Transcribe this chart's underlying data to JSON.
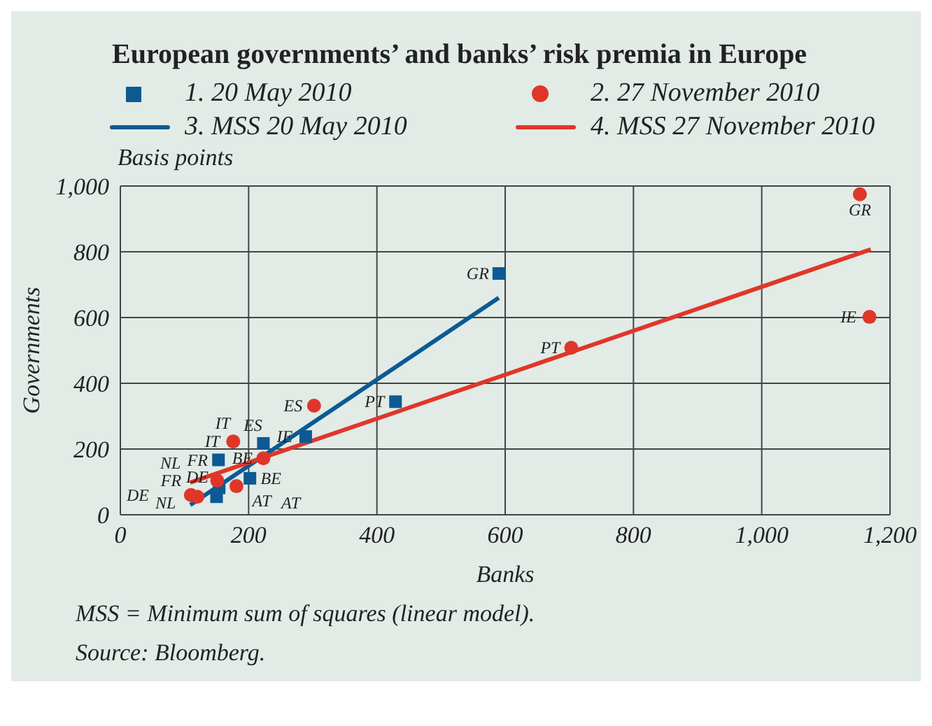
{
  "chart_data": {
    "type": "scatter",
    "title": "European governments’ and banks’ risk premia in Europe",
    "subtitle": "Basis points",
    "xlabel": "Banks",
    "ylabel": "Governments",
    "series": [
      {
        "name": "1. 20 May 2010",
        "marker": "square",
        "color": "#0b5a94",
        "x": [
          590,
          429,
          289,
          223,
          153,
          202,
          150,
          154,
          null
        ],
        "values": [
          734,
          344,
          238,
          217,
          167,
          111,
          55,
          82,
          null
        ]
      },
      {
        "name": "2. 27 November 2010",
        "marker": "circle",
        "color": "#e0362a",
        "x": [
          1153,
          1168,
          703,
          302,
          176,
          223,
          151,
          181,
          110,
          120
        ],
        "values": [
          975,
          602,
          508,
          332,
          223,
          172,
          104,
          87,
          60,
          55
        ]
      },
      {
        "name": "3. MSS 20 May 2010",
        "type": "line",
        "marker": "none",
        "color": "#0b5a94",
        "x": [
          109,
          590
        ],
        "values": [
          30,
          660
        ]
      },
      {
        "name": "4. MSS 27 November 2010",
        "type": "line",
        "marker": "none",
        "color": "#e0362a",
        "x": [
          109,
          1170
        ],
        "values": [
          98,
          807
        ]
      }
    ],
    "xlim": [
      0,
      1200
    ],
    "xticks": [
      0,
      200,
      400,
      600,
      800,
      {
        "value": 1000,
        "label": "1,000"
      },
      {
        "value": 1200,
        "label": "1,200"
      }
    ],
    "ylim": [
      0,
      1000
    ],
    "yticks": [
      0,
      200,
      400,
      600,
      800,
      {
        "value": 1000,
        "label": "1,000"
      }
    ],
    "grid": true,
    "legend": "top",
    "annotations": [
      {
        "text": "GR",
        "x": 590,
        "y": 734
      },
      {
        "text": "PT",
        "x": 429,
        "y": 344
      },
      {
        "text": "GR",
        "x": 1153,
        "y": 975
      },
      {
        "text": "IE",
        "x": 1168,
        "y": 602
      },
      {
        "text": "PT",
        "x": 703,
        "y": 508
      },
      {
        "text": "IE",
        "x": 289,
        "y": 238
      },
      {
        "text": "ES",
        "x": 302,
        "y": 332
      },
      {
        "text": "ES",
        "x": 223,
        "y": 217
      },
      {
        "text": "IT",
        "x": 176,
        "y": 223
      },
      {
        "text": "IT",
        "x": 176,
        "y": 223
      },
      {
        "text": "FR",
        "x": 153,
        "y": 167
      },
      {
        "text": "FR",
        "x": 151,
        "y": 104
      },
      {
        "text": "BE",
        "x": 223,
        "y": 172
      },
      {
        "text": "BE",
        "x": 202,
        "y": 111
      },
      {
        "text": "AT",
        "x": 154,
        "y": 82
      },
      {
        "text": "AT",
        "x": 181,
        "y": 87
      },
      {
        "text": "NL",
        "x": 110,
        "y": 60
      },
      {
        "text": "NL",
        "x": 150,
        "y": 55
      },
      {
        "text": "DE",
        "x": 109,
        "y": 60
      },
      {
        "text": "DE",
        "x": 120,
        "y": 55
      },
      "MSS = Minimum sum of squares (linear model).",
      "Source: Bloomberg."
    ]
  }
}
